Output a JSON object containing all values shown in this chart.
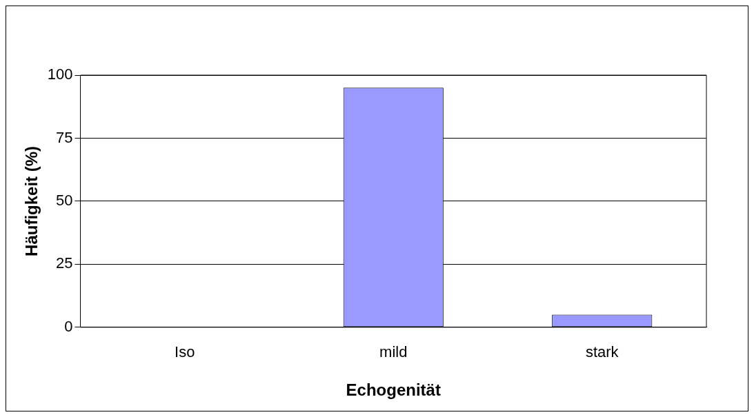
{
  "chart_data": {
    "type": "bar",
    "xlabel": "Echogenität",
    "ylabel": "Häufigkeit (%)",
    "categories": [
      "Iso",
      "mild",
      "stark"
    ],
    "series": [
      {
        "color": "#9999ff",
        "values": [
          0,
          95,
          5
        ]
      }
    ],
    "ylim": [
      0,
      100
    ],
    "yticks": [
      0,
      25,
      50,
      75,
      100
    ],
    "grid": "y",
    "legend": false
  }
}
